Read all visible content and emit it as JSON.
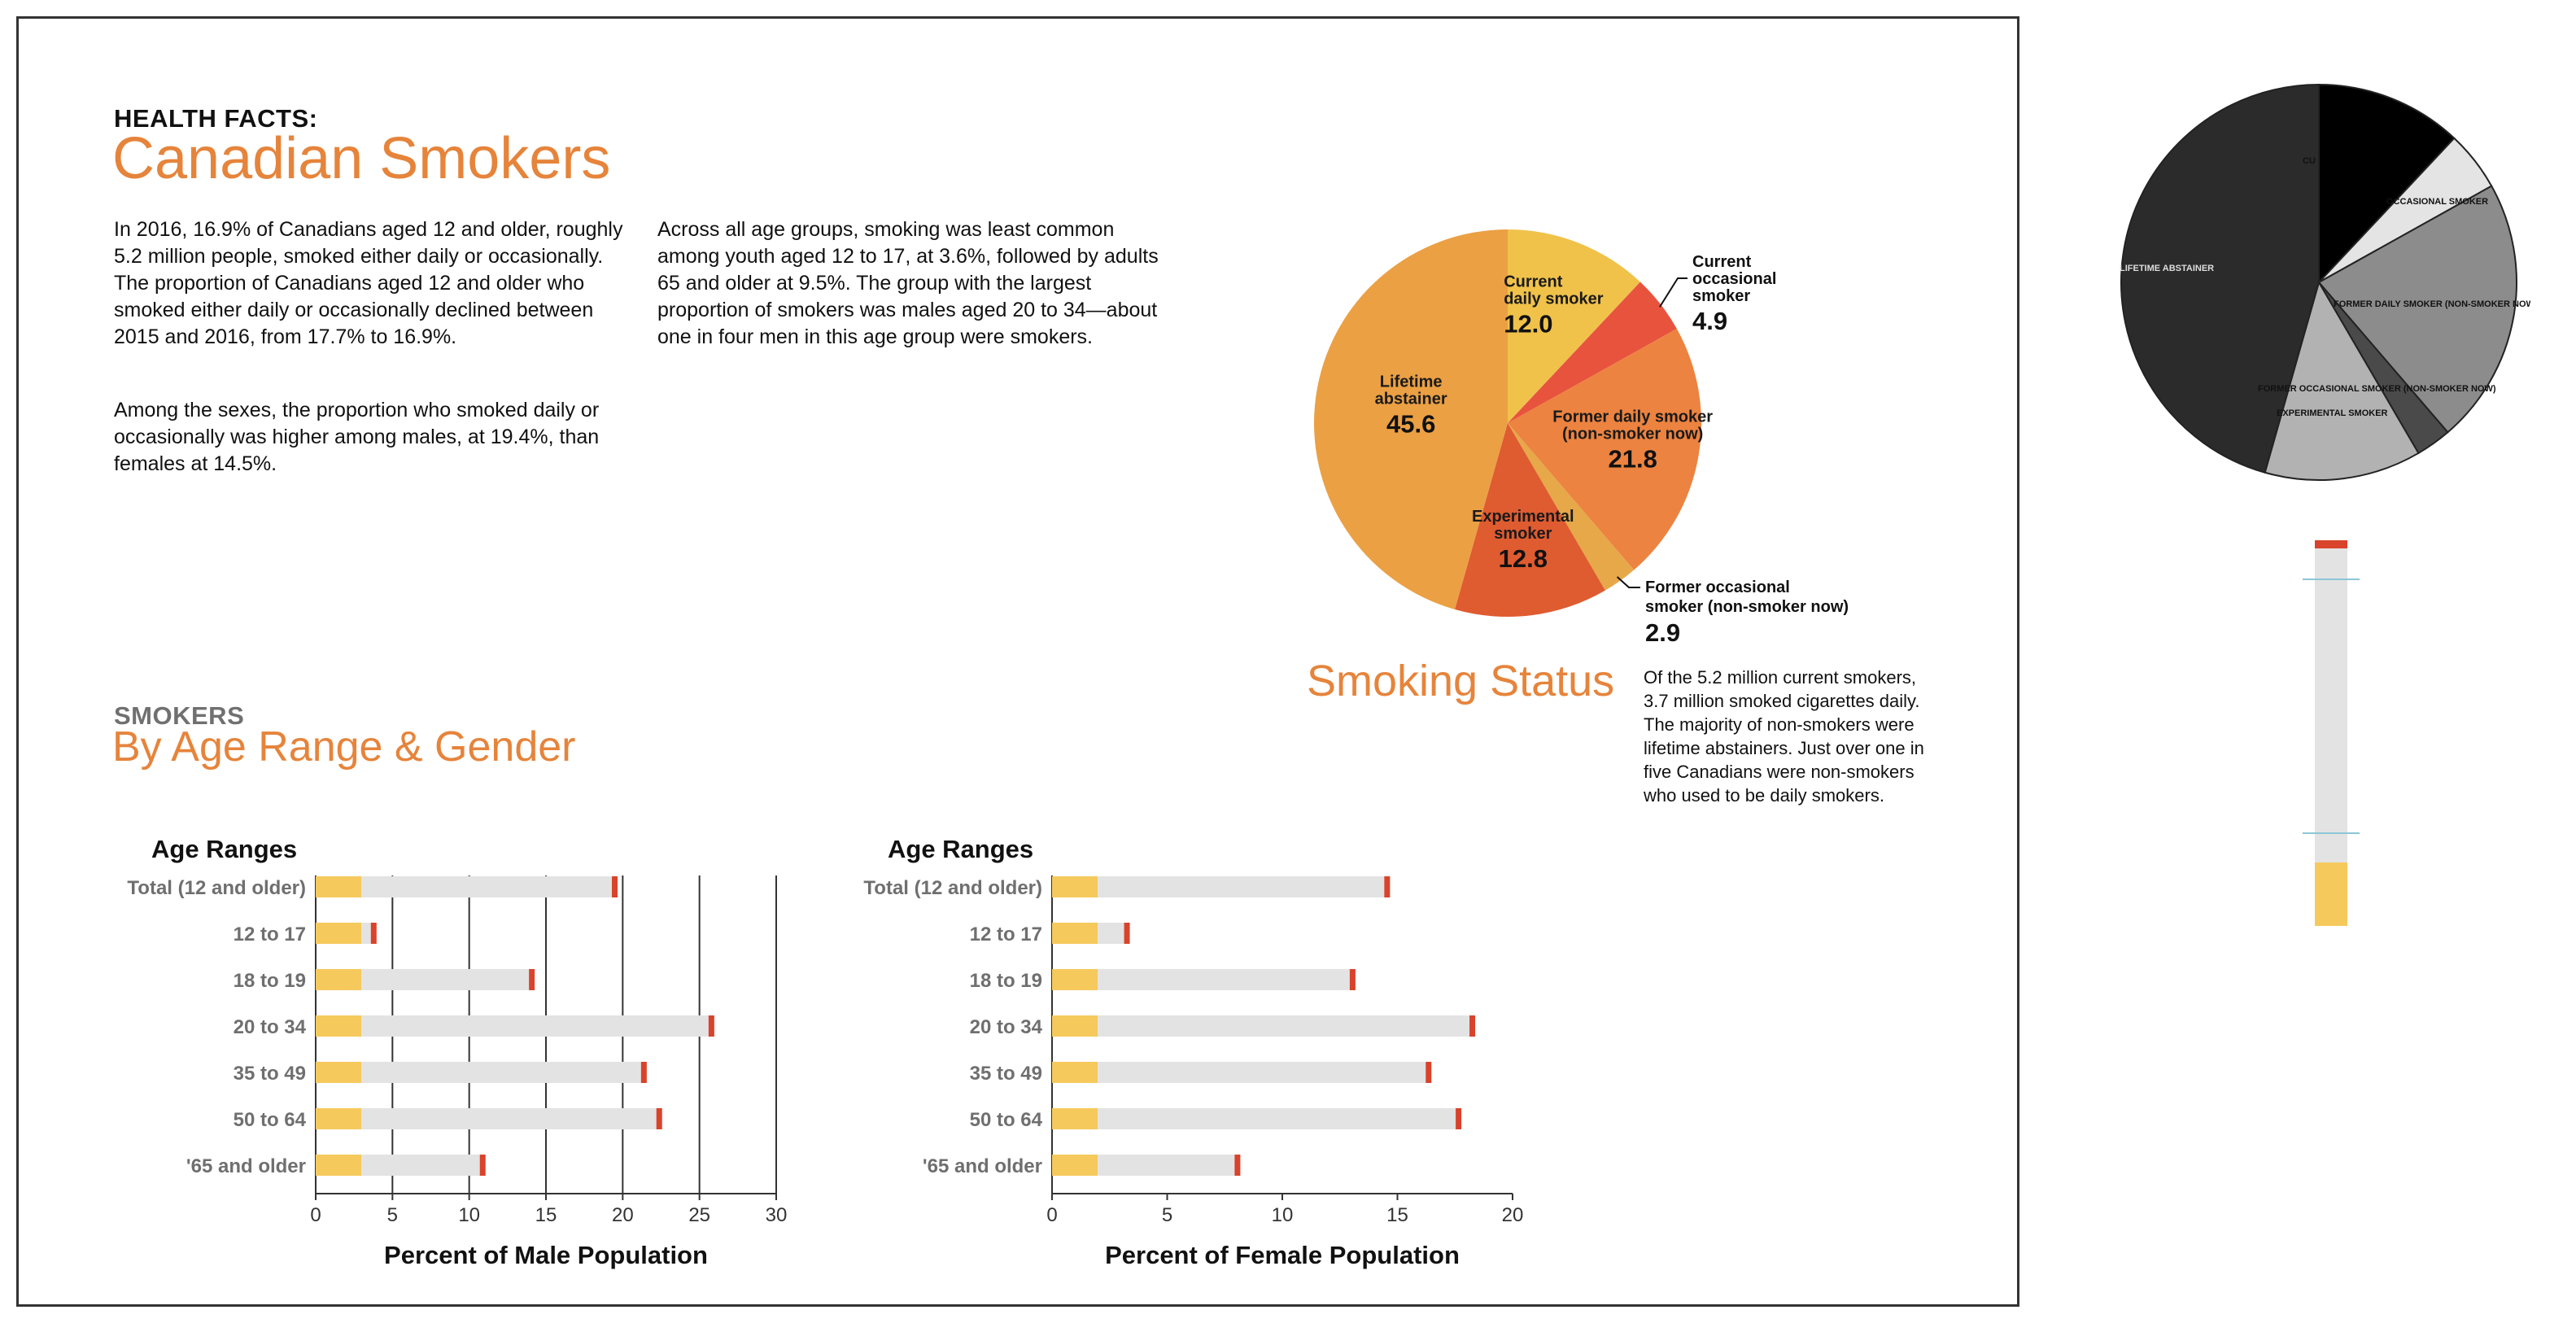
{
  "header": {
    "kicker": "HEALTH FACTS:",
    "title": "Canadian Smokers"
  },
  "intro": {
    "p1": "In 2016, 16.9% of Canadians aged 12 and older, roughly 5.2 million people, smoked either daily or occasionally. The proportion of Canadians aged 12 and older who smoked either daily or occasionally declined between 2015 and 2016, from 17.7% to 16.9%.",
    "p2": "Among the sexes, the proportion who smoked daily or occasionally was higher among males, at 19.4%, than females at 14.5%.",
    "p3": "Across all age groups, smoking was least common among youth aged 12 to 17, at 3.6%, followed by adults 65 and older at 9.5%. The group with the largest proportion of smokers was males aged 20 to 34—about one in four men in this age group were smokers."
  },
  "section2": {
    "kicker": "SMOKERS",
    "title": "By Age Range & Gender"
  },
  "smoking_status": {
    "title": "Smoking Status",
    "note": "Of the 5.2 million current smokers, 3.7 million smoked cigarettes daily. The majority of non-smokers were lifetime abstainers. Just over one in five Canadians were non-smokers who used to be daily smokers."
  },
  "colors": {
    "accent": "#e6843b",
    "cig_filter": "#f5c95c",
    "cig_body": "#e3e3e3",
    "cig_ember": "#d9432b",
    "pie": [
      "#f0c24a",
      "#e8533e",
      "#ec8340",
      "#e6a848",
      "#df5b30",
      "#eba044"
    ]
  },
  "chart_data": [
    {
      "type": "pie",
      "title": "Smoking Status",
      "labels": [
        "Current daily smoker",
        "Current occasional smoker",
        "Former daily smoker (non-smoker now)",
        "Former occasional smoker (non-smoker now)",
        "Experimental smoker",
        "Lifetime abstainer"
      ],
      "values": [
        12.0,
        4.9,
        21.8,
        2.9,
        12.8,
        45.6
      ],
      "value_labels": [
        "12.0",
        "4.9",
        "21.8",
        "2.9",
        "12.8",
        "45.6"
      ]
    },
    {
      "type": "bar",
      "orientation": "horizontal",
      "ylabel": "Age Ranges",
      "xlabel": "Percent of Male Population",
      "categories": [
        "Total (12 and older)",
        "12 to 17",
        "18 to 19",
        "20 to 34",
        "35 to 49",
        "50 to 64",
        "'65 and older"
      ],
      "values": [
        19.4,
        3.7,
        14.0,
        25.7,
        21.3,
        22.3,
        10.8
      ],
      "xlim": [
        0,
        30
      ],
      "xticks": [
        0,
        5,
        10,
        15,
        20,
        25,
        30
      ],
      "grid": true
    },
    {
      "type": "bar",
      "orientation": "horizontal",
      "ylabel": "Age Ranges",
      "xlabel": "Percent of Female Population",
      "categories": [
        "Total (12 and older)",
        "12 to 17",
        "18 to 19",
        "20 to 34",
        "35 to 49",
        "50 to 64",
        "'65 and older"
      ],
      "values": [
        14.5,
        3.2,
        13.0,
        18.2,
        16.3,
        17.6,
        8.0
      ],
      "xlim": [
        0,
        20
      ],
      "xticks": [
        0,
        5,
        10,
        15,
        20
      ],
      "grid": false
    },
    {
      "type": "pie",
      "labels": [
        "CURRENT DAILY SMOKER",
        "CURRENT OCCASIONAL SMOKER",
        "FORMER DAILY SMOKER (NON-SMOKER NOW)",
        "FORMER OCCASIONAL SMOKER (NON-SMOKER NOW)",
        "EXPERIMENTAL SMOKER",
        "LIFETIME ABSTAINER"
      ],
      "visible_labels": [
        "CU",
        "OCCASIONAL SMOKER",
        "FORMER DAILY SMOKER (NON-SMOKER NOW)",
        "FORMER OCCASIONAL SMOKER (NON-SMOKER NOW)",
        "EXPERIMENTAL SMOKER",
        "LIFETIME ABSTAINER"
      ],
      "values": [
        12.0,
        4.9,
        21.8,
        2.9,
        12.8,
        45.6
      ],
      "colors": [
        "#000000",
        "#e4e4e4",
        "#8c8c8c",
        "#4a4a4a",
        "#b2b2b2",
        "#2b2b2b"
      ]
    }
  ]
}
